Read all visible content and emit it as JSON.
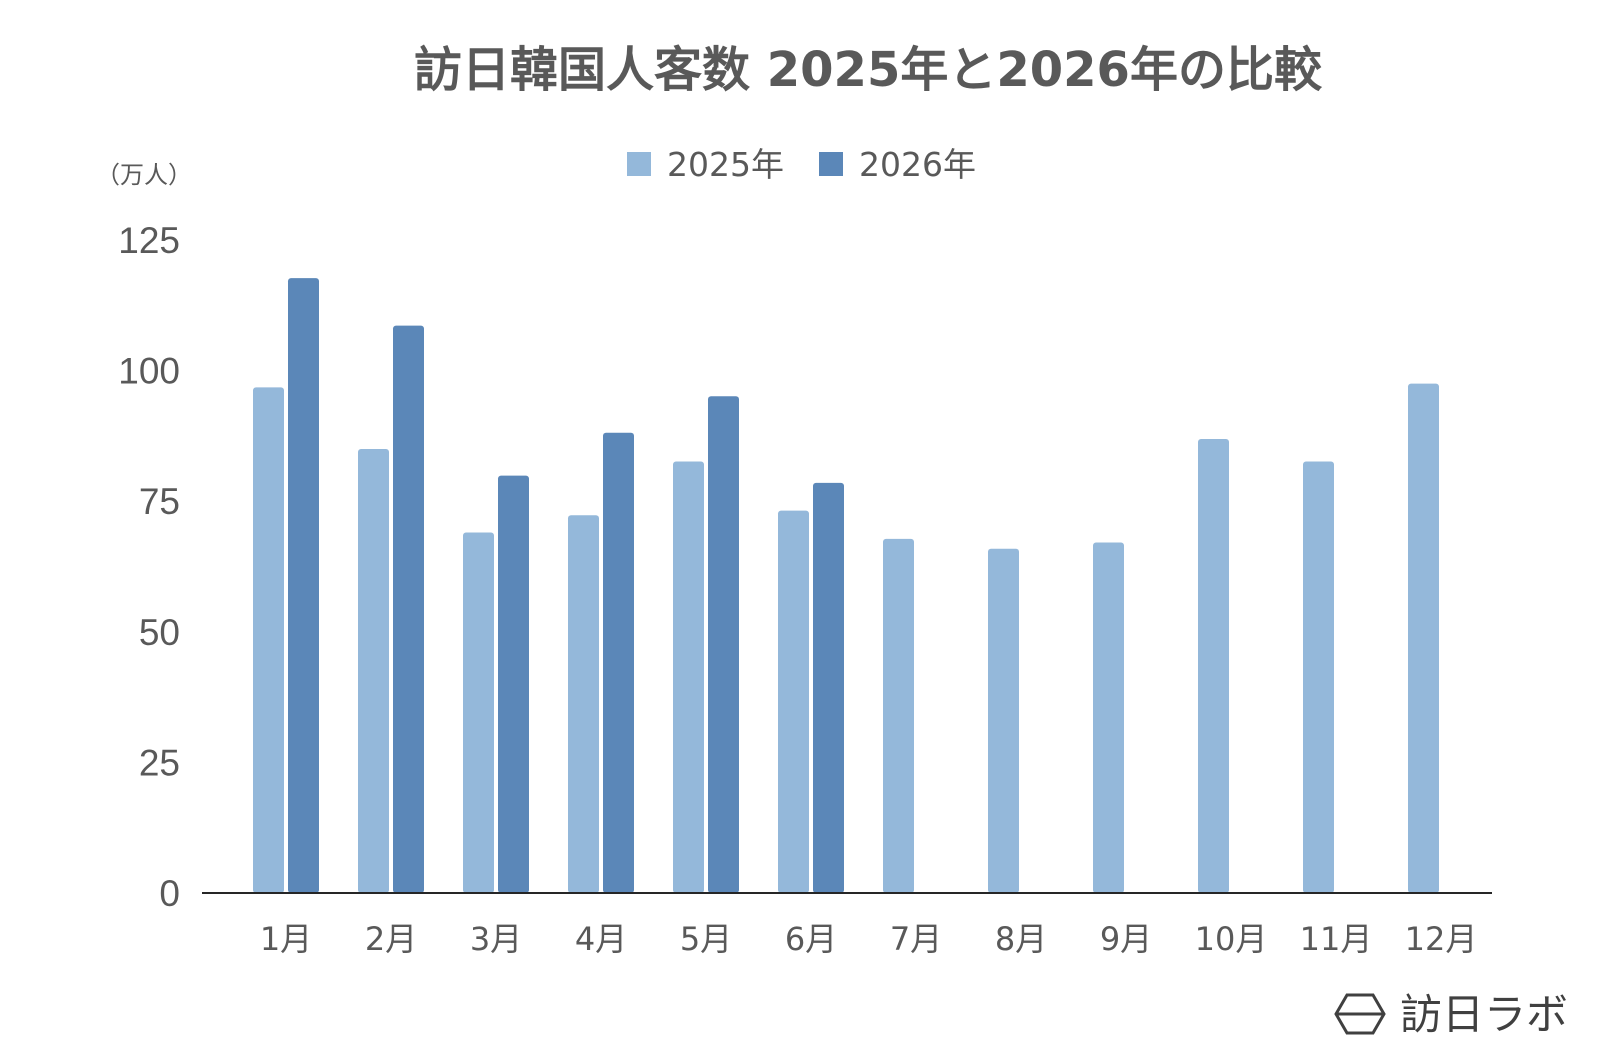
{
  "chart_data": {
    "type": "bar",
    "title": "訪日韓国人客数 2025年と2026年の比較",
    "unit_label": "（万人）",
    "categories": [
      "1月",
      "2月",
      "3月",
      "4月",
      "5月",
      "6月",
      "7月",
      "8月",
      "9月",
      "10月",
      "11月",
      "12月"
    ],
    "series": [
      {
        "name": "2025年",
        "color": "#94b8da",
        "values": [
          96.8,
          85,
          69,
          72.3,
          82.6,
          73.2,
          67.8,
          65.9,
          67.1,
          86.9,
          82.6,
          97.5
        ]
      },
      {
        "name": "2026年",
        "color": "#5b87b8",
        "values": [
          117.7,
          108.6,
          79.9,
          88.1,
          95.1,
          78.5,
          null,
          null,
          null,
          null,
          null,
          null
        ]
      }
    ],
    "yticks": [
      "0",
      "25",
      "50",
      "75",
      "100",
      "125"
    ],
    "ylim": [
      0,
      125
    ],
    "legend_position": "top-center",
    "grid": false
  },
  "branding": {
    "logo_text": "訪日ラボ",
    "logo_icon": "hexagon-icon"
  }
}
